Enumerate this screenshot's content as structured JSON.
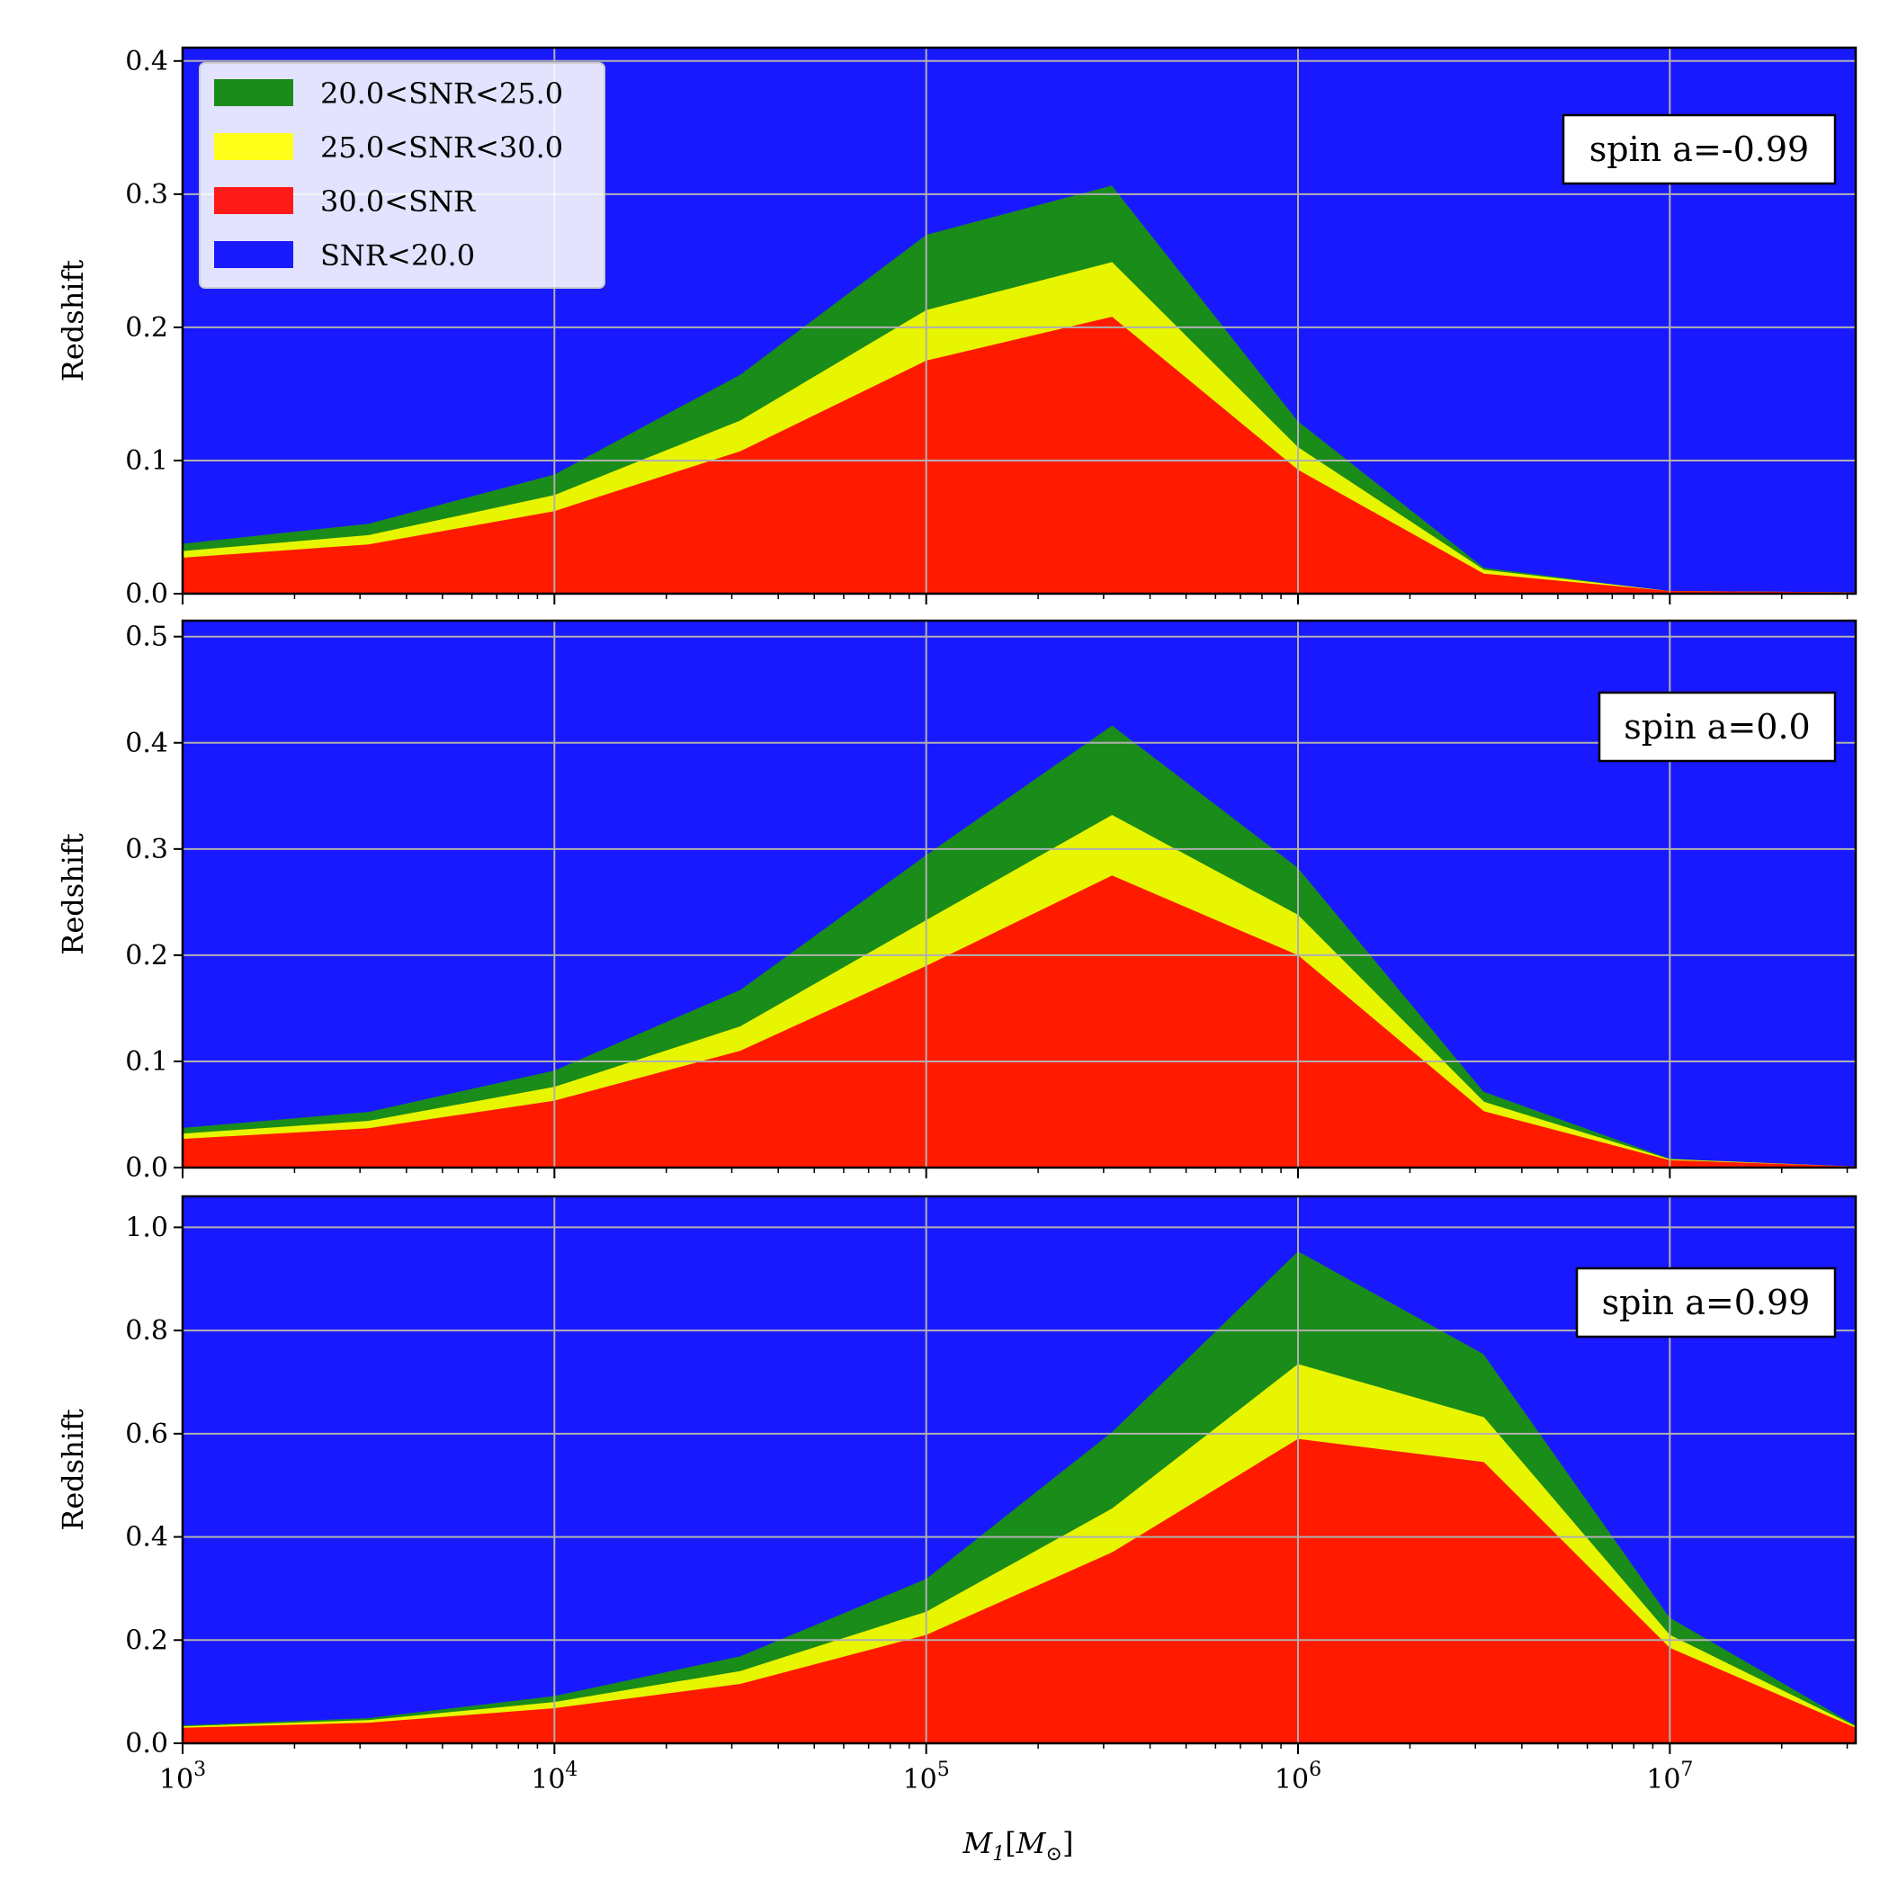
{
  "colors": {
    "background": "#1919ff",
    "snr_20_25": "#1a8c1a",
    "snr_25_30": "#e8f500",
    "snr_30_plus": "#ff1a00",
    "grid": "#b0b0b0"
  },
  "legend": {
    "placement": "upper-left of top panel",
    "entries": [
      {
        "label": "20.0<SNR<25.0",
        "color": "#1a8c1a"
      },
      {
        "label": "25.0<SNR<30.0",
        "color": "#ffff1a"
      },
      {
        "label": "30.0<SNR",
        "color": "#ff1a1a"
      },
      {
        "label": "SNR<20.0",
        "color": "#1a1aff"
      }
    ]
  },
  "chart_data": [
    {
      "type": "area",
      "annotation": "spin a=-0.99",
      "ylabel": "Redshift",
      "xlabel": "",
      "x_scale": "log",
      "x": [
        1000,
        3162,
        10000,
        31623,
        100000,
        316228,
        1000000,
        3162278,
        10000000,
        31622777
      ],
      "xlim": [
        1000,
        31622777
      ],
      "ylim": [
        0,
        0.41
      ],
      "yticks": [
        0.0,
        0.1,
        0.2,
        0.3,
        0.4
      ],
      "ytick_labels": [
        "0.0",
        "0.1",
        "0.2",
        "0.3",
        "0.4"
      ],
      "grid": true,
      "series": [
        {
          "name": "20.0<SNR<25.0",
          "values": [
            0.038,
            0.053,
            0.09,
            0.165,
            0.27,
            0.307,
            0.13,
            0.02,
            0.002,
            0.001
          ]
        },
        {
          "name": "25.0<SNR<30.0",
          "values": [
            0.032,
            0.044,
            0.074,
            0.13,
            0.213,
            0.249,
            0.11,
            0.018,
            0.002,
            0.001
          ]
        },
        {
          "name": "30.0<SNR",
          "values": [
            0.027,
            0.037,
            0.062,
            0.107,
            0.175,
            0.208,
            0.093,
            0.015,
            0.002,
            0.001
          ]
        }
      ]
    },
    {
      "type": "area",
      "annotation": "spin a=0.0",
      "ylabel": "Redshift",
      "xlabel": "",
      "x_scale": "log",
      "x": [
        1000,
        3162,
        10000,
        31623,
        100000,
        316228,
        1000000,
        3162278,
        10000000,
        31622777
      ],
      "xlim": [
        1000,
        31622777
      ],
      "ylim": [
        0,
        0.515
      ],
      "yticks": [
        0.0,
        0.1,
        0.2,
        0.3,
        0.4,
        0.5
      ],
      "ytick_labels": [
        "0.0",
        "0.1",
        "0.2",
        "0.3",
        "0.4",
        "0.5"
      ],
      "grid": true,
      "series": [
        {
          "name": "20.0<SNR<25.0",
          "values": [
            0.038,
            0.053,
            0.092,
            0.168,
            0.295,
            0.417,
            0.283,
            0.072,
            0.009,
            0.001
          ]
        },
        {
          "name": "25.0<SNR<30.0",
          "values": [
            0.032,
            0.044,
            0.076,
            0.133,
            0.233,
            0.332,
            0.238,
            0.062,
            0.008,
            0.001
          ]
        },
        {
          "name": "30.0<SNR",
          "values": [
            0.027,
            0.037,
            0.063,
            0.11,
            0.19,
            0.275,
            0.2,
            0.053,
            0.007,
            0.001
          ]
        }
      ]
    },
    {
      "type": "area",
      "annotation": "spin a=0.99",
      "ylabel": "Redshift",
      "xlabel": "M_1[M_⊙]",
      "x_scale": "log",
      "x": [
        1000,
        3162,
        10000,
        31623,
        100000,
        316228,
        1000000,
        3162278,
        10000000,
        31622777
      ],
      "xlim": [
        1000,
        31622777
      ],
      "ylim": [
        0,
        1.06
      ],
      "yticks": [
        0.0,
        0.2,
        0.4,
        0.6,
        0.8,
        1.0
      ],
      "ytick_labels": [
        "0.0",
        "0.2",
        "0.4",
        "0.6",
        "0.8",
        "1.0"
      ],
      "xtick_labels": [
        {
          "base": "10",
          "exp": "3"
        },
        {
          "base": "10",
          "exp": "4"
        },
        {
          "base": "10",
          "exp": "5"
        },
        {
          "base": "10",
          "exp": "6"
        },
        {
          "base": "10",
          "exp": "7"
        }
      ],
      "grid": true,
      "series": [
        {
          "name": "20.0<SNR<25.0",
          "values": [
            0.036,
            0.05,
            0.093,
            0.17,
            0.32,
            0.605,
            0.955,
            0.755,
            0.245,
            0.036
          ]
        },
        {
          "name": "25.0<SNR<30.0",
          "values": [
            0.033,
            0.045,
            0.08,
            0.14,
            0.255,
            0.455,
            0.735,
            0.632,
            0.21,
            0.033
          ]
        },
        {
          "name": "30.0<SNR",
          "values": [
            0.03,
            0.04,
            0.068,
            0.115,
            0.21,
            0.37,
            0.59,
            0.545,
            0.185,
            0.03
          ]
        }
      ]
    }
  ]
}
